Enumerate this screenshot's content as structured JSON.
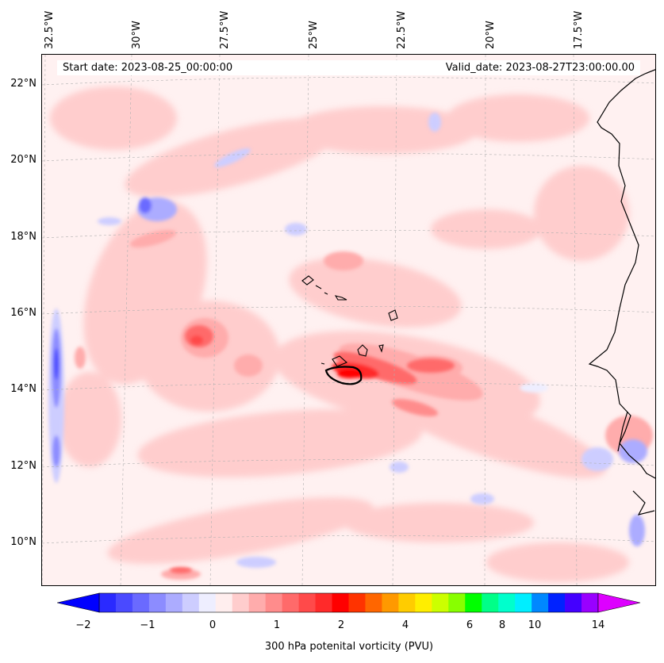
{
  "header": {
    "start_date": "Start date: 2023-08-25_00:00:00",
    "valid_date": "Valid_date: 2023-08-27T23:00:00.00"
  },
  "axes": {
    "lon_labels": [
      "32.5°W",
      "30°W",
      "27.5°W",
      "25°W",
      "22.5°W",
      "20°W",
      "17.5°W"
    ],
    "lat_labels": [
      "22°N",
      "20°N",
      "18°N",
      "16°N",
      "14°N",
      "12°N",
      "10°N"
    ]
  },
  "colorbar": {
    "label": "300 hPa potenital vorticity (PVU)",
    "tick_labels": [
      "−2",
      "−1",
      "0",
      "1",
      "2",
      "4",
      "6",
      "8",
      "10",
      "14"
    ],
    "colors": [
      "#0000ff",
      "#2a2aff",
      "#4a4aff",
      "#6a6aff",
      "#8c8cff",
      "#acacff",
      "#cdcdff",
      "#eeeeff",
      "#ffeeee",
      "#ffcdcd",
      "#ffacac",
      "#ff8c8c",
      "#ff6a6a",
      "#ff4a4a",
      "#ff2a2a",
      "#ff0000",
      "#ff3300",
      "#ff6600",
      "#ff9900",
      "#ffcc00",
      "#ffee00",
      "#ccff00",
      "#88ff00",
      "#00ff00",
      "#00ff88",
      "#00ffcc",
      "#00eeff",
      "#0088ff",
      "#0022ff",
      "#4400ff",
      "#9900ff",
      "#dd00ff"
    ]
  },
  "colors": {
    "background_pv": "#fff1f1",
    "coast": "#000000"
  }
}
